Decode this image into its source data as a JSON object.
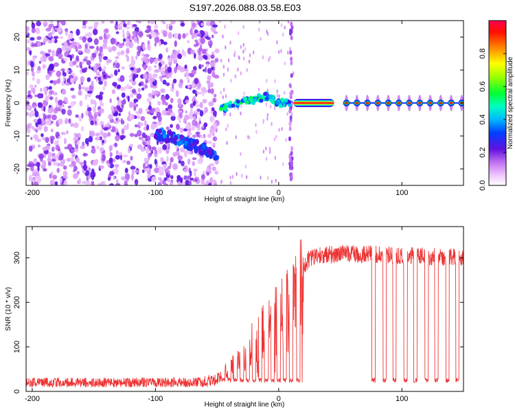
{
  "title": "S197.2026.088.03.58.E03",
  "chart_data": [
    {
      "type": "heatmap",
      "xlabel": "Height of straight line (km)",
      "ylabel": "Frequency (Hz)",
      "xlim": [
        -205,
        150
      ],
      "ylim": [
        -25,
        25
      ],
      "xticks": [
        -200,
        -100,
        0,
        100
      ],
      "yticks": [
        -20,
        -10,
        0,
        10,
        20
      ],
      "colorbar": {
        "label": "Normalized spectral amplitude",
        "range": [
          0,
          1
        ],
        "ticks": [
          "0.0",
          "0.2",
          "0.4",
          "0.6",
          "0.8"
        ]
      },
      "segments": [
        {
          "name": "noise",
          "x_range": [
            -205,
            -50
          ],
          "frequency_hz": "broadband (-25 to 25)",
          "amplitude": 0.2
        },
        {
          "name": "descending track",
          "points": [
            [
              -100,
              -9
            ],
            [
              -80,
              -11.5
            ],
            [
              -60,
              -14
            ],
            [
              -50,
              -16
            ]
          ],
          "amplitude": 0.35
        },
        {
          "name": "ridge",
          "points": [
            [
              -47,
              -2
            ],
            [
              -40,
              -1
            ],
            [
              -30,
              0.5
            ],
            [
              -20,
              1
            ],
            [
              -10,
              2
            ],
            [
              0,
              0
            ],
            [
              10,
              0
            ]
          ],
          "amplitude": 0.5
        },
        {
          "name": "steady line",
          "x_range": [
            12,
            45
          ],
          "frequency_hz": 0,
          "amplitude": 0.95
        },
        {
          "name": "periodic bursts",
          "x_range": [
            55,
            150
          ],
          "spacing_km": 8.5,
          "frequency_hz": 0,
          "amplitude": 0.95
        }
      ]
    },
    {
      "type": "line",
      "xlabel": "Height of straight line (km)",
      "ylabel": "SNR (10 * v/v)",
      "xlim": [
        -205,
        150
      ],
      "ylim": [
        0,
        370
      ],
      "xticks": [
        -200,
        -100,
        0,
        100
      ],
      "yticks": [
        0,
        100,
        200,
        300
      ],
      "series": [
        {
          "name": "SNR",
          "color": "#ee3333",
          "profile": [
            {
              "x": -205,
              "mean": 20
            },
            {
              "x": -60,
              "mean": 20
            },
            {
              "x": -45,
              "mean": 45
            },
            {
              "x": -30,
              "mean": 80
            },
            {
              "x": -15,
              "mean": 150
            },
            {
              "x": 0,
              "mean": 190
            },
            {
              "x": 10,
              "mean": 220
            },
            {
              "x": 18,
              "mean": 270
            },
            {
              "x": 25,
              "mean": 300
            },
            {
              "x": 50,
              "mean": 310
            },
            {
              "x": 150,
              "mean": 300
            }
          ],
          "dropout_x": [
            -45,
            -40,
            -35,
            -30,
            -25,
            -20,
            -15,
            -10,
            -5,
            0,
            5,
            10,
            16,
            77,
            86,
            94,
            103,
            111,
            120,
            128,
            137,
            145
          ],
          "dropout_level": 20
        }
      ]
    }
  ]
}
